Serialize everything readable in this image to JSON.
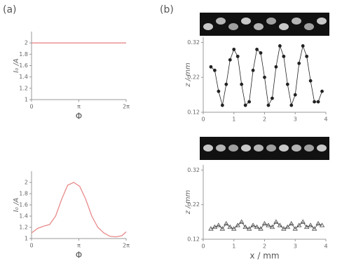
{
  "panels": [
    "(a)",
    "(b)"
  ],
  "chart_data": [
    {
      "type": "line",
      "ylabel": "I₀ /A",
      "xlabel": "Φ",
      "xlim": [
        0,
        6.2832
      ],
      "ylim": [
        1,
        2.2
      ],
      "xticks": [
        0,
        {
          "value": 3.1416,
          "label": "π"
        },
        {
          "value": 6.2832,
          "label": "2π"
        }
      ],
      "yticks": [
        1,
        1.2,
        1.4,
        1.6,
        1.8,
        2
      ],
      "series": [
        {
          "color": "#e88a8a",
          "x": [
            0,
            6.2832
          ],
          "values": [
            2,
            2
          ]
        }
      ]
    },
    {
      "type": "line",
      "ylabel": "I₀ /A",
      "xlabel": "Φ",
      "xlim": [
        0,
        6.2832
      ],
      "ylim": [
        1,
        2.2
      ],
      "xticks": [
        0,
        {
          "value": 3.1416,
          "label": "π"
        },
        {
          "value": 6.2832,
          "label": "2π"
        }
      ],
      "yticks": [
        1,
        1.2,
        1.4,
        1.6,
        1.8,
        2
      ],
      "series": [
        {
          "color": "#e88a8a",
          "x": [
            0,
            0.4,
            0.8,
            1.2,
            1.6,
            2.0,
            2.4,
            2.8,
            3.2,
            3.6,
            4.0,
            4.4,
            4.8,
            5.2,
            5.6,
            6.0,
            6.2832
          ],
          "values": [
            1.1,
            1.18,
            1.22,
            1.25,
            1.4,
            1.7,
            1.95,
            2.0,
            1.93,
            1.7,
            1.4,
            1.2,
            1.1,
            1.04,
            1.03,
            1.05,
            1.12
          ]
        }
      ]
    },
    {
      "type": "line",
      "ylabel": "z / mm",
      "xlim": [
        0,
        4
      ],
      "ylim": [
        0.12,
        0.335
      ],
      "xticks": [
        0,
        1,
        2,
        3,
        4
      ],
      "yticks": [
        0.12,
        0.22,
        0.32
      ],
      "series": [
        {
          "color": "#222",
          "marker": "circle",
          "x": [
            0.25,
            0.375,
            0.5,
            0.625,
            0.75,
            0.875,
            1.0,
            1.125,
            1.25,
            1.375,
            1.5,
            1.625,
            1.75,
            1.875,
            2.0,
            2.125,
            2.25,
            2.375,
            2.5,
            2.625,
            2.75,
            2.875,
            3.0,
            3.125,
            3.25,
            3.375,
            3.5,
            3.625,
            3.75,
            3.875
          ],
          "values": [
            0.25,
            0.24,
            0.18,
            0.14,
            0.2,
            0.27,
            0.3,
            0.28,
            0.2,
            0.14,
            0.15,
            0.24,
            0.3,
            0.29,
            0.22,
            0.14,
            0.16,
            0.25,
            0.31,
            0.28,
            0.2,
            0.14,
            0.17,
            0.26,
            0.31,
            0.28,
            0.21,
            0.15,
            0.15,
            0.18
          ]
        }
      ]
    },
    {
      "type": "line",
      "ylabel": "z / mm",
      "xlabel": "x / mm",
      "xlim": [
        0,
        4
      ],
      "ylim": [
        0.12,
        0.335
      ],
      "xticks": [
        0,
        1,
        2,
        3,
        4
      ],
      "yticks": [
        0.12,
        0.22,
        0.32
      ],
      "series": [
        {
          "color": "#444",
          "marker": "triangle",
          "x": [
            0.25,
            0.375,
            0.5,
            0.625,
            0.75,
            0.875,
            1.0,
            1.125,
            1.25,
            1.375,
            1.5,
            1.625,
            1.75,
            1.875,
            2.0,
            2.125,
            2.25,
            2.375,
            2.5,
            2.625,
            2.75,
            2.875,
            3.0,
            3.125,
            3.25,
            3.375,
            3.5,
            3.625,
            3.75,
            3.875
          ],
          "values": [
            0.15,
            0.155,
            0.16,
            0.15,
            0.165,
            0.155,
            0.15,
            0.16,
            0.17,
            0.155,
            0.15,
            0.16,
            0.155,
            0.15,
            0.165,
            0.16,
            0.155,
            0.17,
            0.16,
            0.15,
            0.155,
            0.165,
            0.15,
            0.16,
            0.17,
            0.155,
            0.16,
            0.15,
            0.165,
            0.16
          ]
        }
      ]
    }
  ]
}
